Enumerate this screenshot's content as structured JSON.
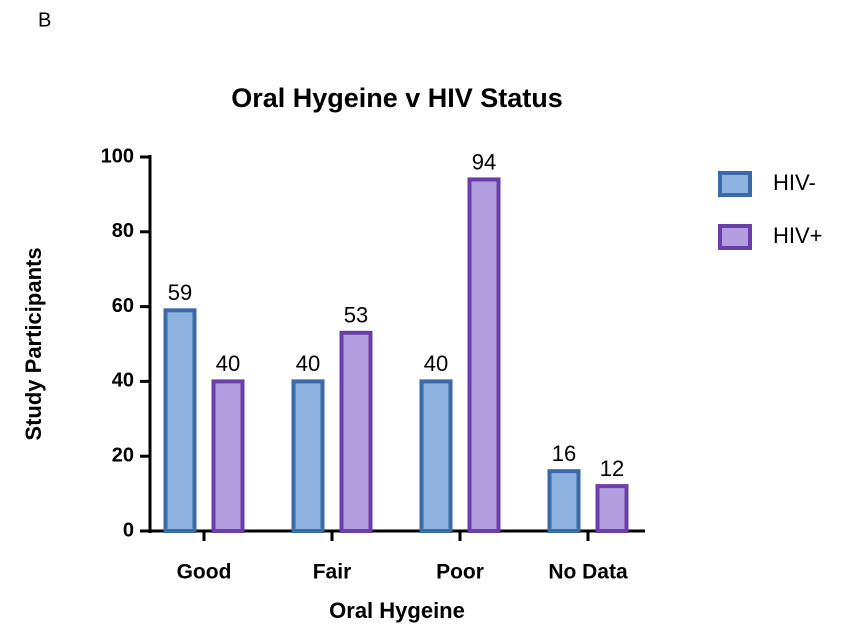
{
  "panel_label": "B",
  "chart_data": {
    "type": "bar",
    "title": "Oral Hygeine v HIV Status",
    "x_label": "Oral Hygeine",
    "y_label": "Study Participants",
    "categories": [
      "Good",
      "Fair",
      "Poor",
      "No Data"
    ],
    "series": [
      {
        "name": "HIV-",
        "color": "#8fb3e0",
        "edge_color": "#3a6aa8",
        "values": [
          59,
          40,
          40,
          16
        ]
      },
      {
        "name": "HIV+",
        "color": "#b39fe0",
        "edge_color": "#6a3fa8",
        "values": [
          40,
          53,
          94,
          12
        ]
      }
    ],
    "ylim": [
      0,
      100
    ],
    "yticks": [
      0,
      20,
      40,
      60,
      80,
      100
    ],
    "grid": false,
    "legend": "right"
  }
}
